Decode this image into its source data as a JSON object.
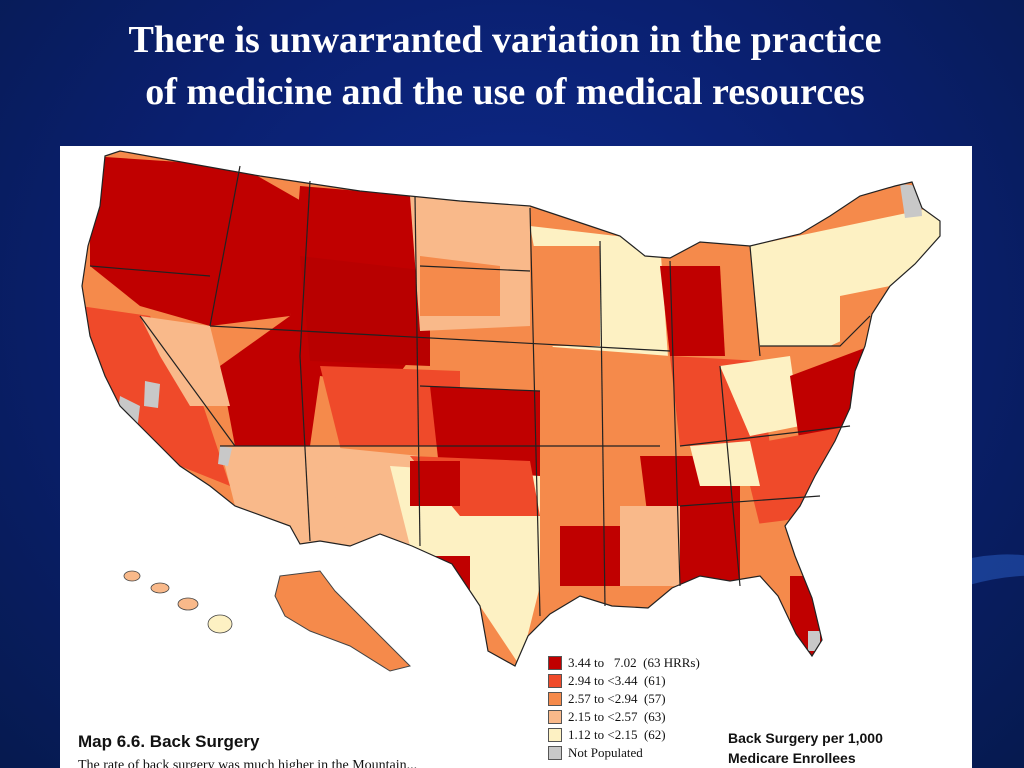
{
  "slide": {
    "title_line1": "There is unwarranted variation in the practice",
    "title_line2": "of medicine and the use of medical resources"
  },
  "map": {
    "caption": "Map 6.6. Back Surgery",
    "subcaption": "The rate of back surgery was much higher in the Mountain...",
    "metric_line1": "Back Surgery per 1,000",
    "metric_line2": "Medicare Enrollees",
    "legend": [
      {
        "label": "3.44 to   7.02  (63 HRRs)",
        "color": "#c00000"
      },
      {
        "label": "2.94 to <3.44  (61)",
        "color": "#ef4a2a"
      },
      {
        "label": "2.57 to <2.94  (57)",
        "color": "#f58a4b"
      },
      {
        "label": "2.15 to <2.57  (63)",
        "color": "#f9b98a"
      },
      {
        "label": "1.12 to <2.15  (62)",
        "color": "#fdf1c3"
      },
      {
        "label": "Not Populated",
        "color": "#c8c8c8"
      }
    ]
  },
  "colors": {
    "background": "#0a1f6e",
    "title": "#ffffff",
    "border": "#222222"
  }
}
